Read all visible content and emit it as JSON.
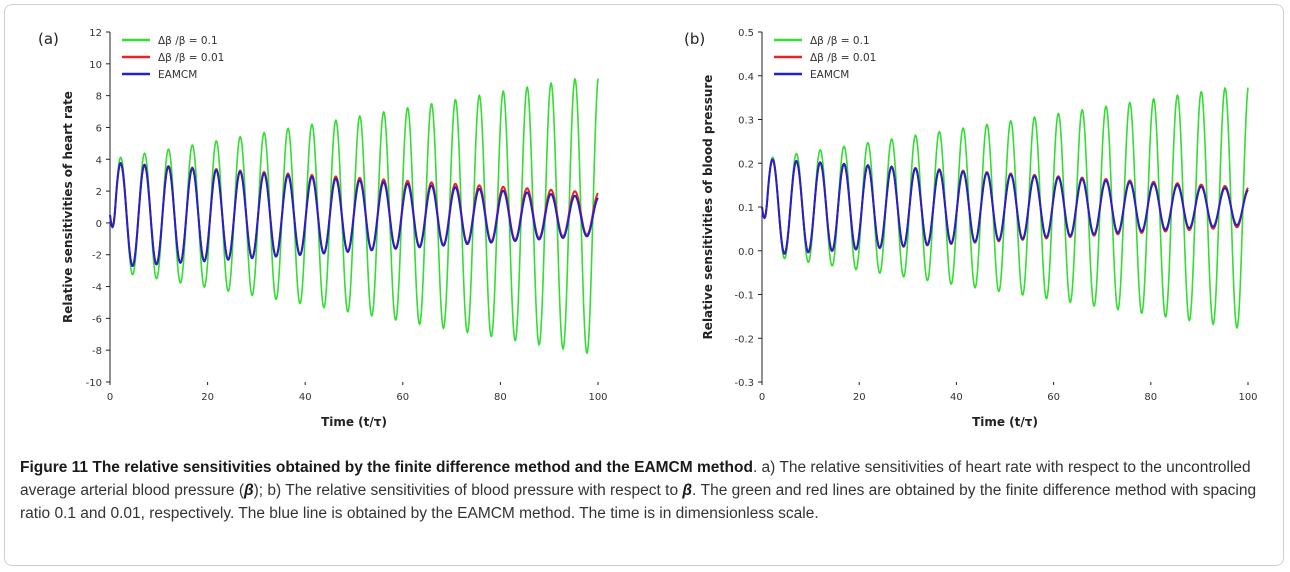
{
  "caption": {
    "title": "Figure 11 The relative sensitivities obtained by the finite difference method and the EAMCM method",
    "text_1": ". a) The relative sensitivities of heart rate with respect to the uncontrolled average arterial blood pressure (",
    "beta": "β",
    "text_2": "); b) The relative sensitivities of blood pressure with respect to ",
    "text_3": ". The green and red lines are obtained by the finite difference method with spacing ratio 0.1 and 0.01, respectively. The blue line is obtained by the EAMCM method. The time is in dimensionless scale."
  },
  "colors": {
    "green": "#33dd33",
    "red": "#ee2222",
    "blue": "#2222cc"
  },
  "chart_data": [
    {
      "type": "line",
      "panel_label": "(a)",
      "xlabel": "Time (t/τ)",
      "ylabel": "Relative sensitivities of heart rate",
      "xlim": [
        0,
        100
      ],
      "ylim": [
        -10,
        12
      ],
      "xticks": [
        0,
        20,
        40,
        60,
        80,
        100
      ],
      "yticks": [
        -10,
        -8,
        -6,
        -4,
        -2,
        0,
        2,
        4,
        6,
        8,
        10,
        12
      ],
      "legend_position": "top-left",
      "oscillation_period": 4.9,
      "series": [
        {
          "name": "Δβ /β = 0.1",
          "color": "#33dd33",
          "center": [
            0.5,
            0.5
          ],
          "amplitude": [
            3.5,
            8.8
          ]
        },
        {
          "name": "Δβ /β = 0.01",
          "color": "#ee2222",
          "center": [
            0.5,
            0.6
          ],
          "amplitude": [
            3.3,
            1.3
          ]
        },
        {
          "name": "EAMCM",
          "color": "#2222cc",
          "center": [
            0.5,
            0.4
          ],
          "amplitude": [
            3.3,
            1.2
          ]
        }
      ]
    },
    {
      "type": "line",
      "panel_label": "(b)",
      "xlabel": "Time (t/τ)",
      "ylabel": "Relative sensitivities of blood pressure",
      "xlim": [
        0,
        100
      ],
      "ylim": [
        -0.3,
        0.5
      ],
      "xticks": [
        0,
        20,
        40,
        60,
        80,
        100
      ],
      "yticks": [
        -0.3,
        -0.2,
        -0.1,
        0.0,
        0.1,
        0.2,
        0.3,
        0.4,
        0.5
      ],
      "legend_position": "top-left",
      "oscillation_period": 4.9,
      "series": [
        {
          "name": "Δβ /β = 0.1",
          "color": "#33dd33",
          "center": [
            0.1,
            0.1
          ],
          "amplitude": [
            0.11,
            0.28
          ]
        },
        {
          "name": "Δβ /β = 0.01",
          "color": "#ee2222",
          "center": [
            0.1,
            0.1
          ],
          "amplitude": [
            0.11,
            0.045
          ]
        },
        {
          "name": "EAMCM",
          "color": "#2222cc",
          "center": [
            0.1,
            0.1
          ],
          "amplitude": [
            0.11,
            0.04
          ]
        }
      ]
    }
  ]
}
